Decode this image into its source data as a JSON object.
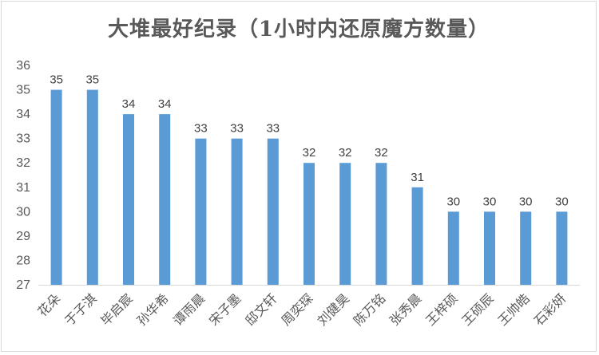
{
  "chart_data": {
    "type": "bar",
    "title": "大堆最好纪录（1小时内还原魔方数量）",
    "categories": [
      "花朵",
      "于子淇",
      "毕启宸",
      "孙华希",
      "谭雨晨",
      "宋子墨",
      "邸文轩",
      "周奕琛",
      "刘健昊",
      "陈万铭",
      "张秀晨",
      "王梓硕",
      "王硕辰",
      "王帅皓",
      "石彩妍"
    ],
    "values": [
      35,
      35,
      34,
      34,
      33,
      33,
      33,
      32,
      32,
      32,
      31,
      30,
      30,
      30,
      30
    ],
    "ylim": [
      27,
      36
    ],
    "yticks": [
      27,
      28,
      29,
      30,
      31,
      32,
      33,
      34,
      35,
      36
    ],
    "xlabel": "",
    "ylabel": "",
    "grid": false,
    "legend": "none",
    "colors": {
      "bar": "#5b9bd5",
      "axis": "#d9d9d9",
      "text": "#595959"
    }
  }
}
